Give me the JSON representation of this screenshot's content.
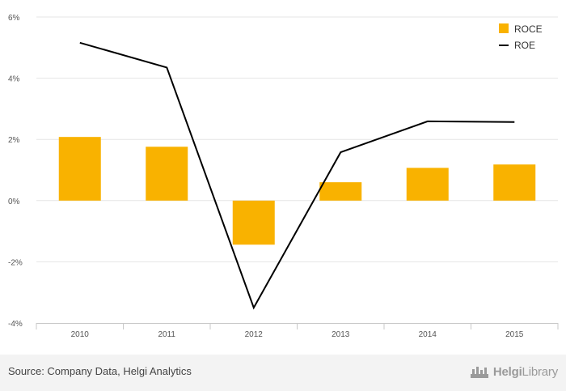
{
  "chart_data": {
    "type": "bar+line",
    "categories": [
      "2010",
      "2011",
      "2012",
      "2013",
      "2014",
      "2015"
    ],
    "series": [
      {
        "name": "ROCE",
        "type": "bar",
        "color": "#f9b200",
        "values": [
          2.08,
          1.76,
          -1.44,
          0.6,
          1.07,
          1.18
        ]
      },
      {
        "name": "ROE",
        "type": "line",
        "color": "#000000",
        "values": [
          5.16,
          4.35,
          -3.5,
          1.58,
          2.59,
          2.57
        ]
      }
    ],
    "ylim": [
      -4,
      6
    ],
    "yticks": [
      -4,
      -2,
      0,
      2,
      4,
      6
    ],
    "ytick_labels": [
      "-4%",
      "-2%",
      "0%",
      "2%",
      "4%",
      "6%"
    ],
    "grid": true,
    "legend_position": "top-right"
  },
  "legend": {
    "roce": "ROCE",
    "roe": "ROE"
  },
  "footer": {
    "source": "Source: Company Data, Helgi Analytics",
    "brand_main": "Helgi",
    "brand_sub": "Library"
  }
}
